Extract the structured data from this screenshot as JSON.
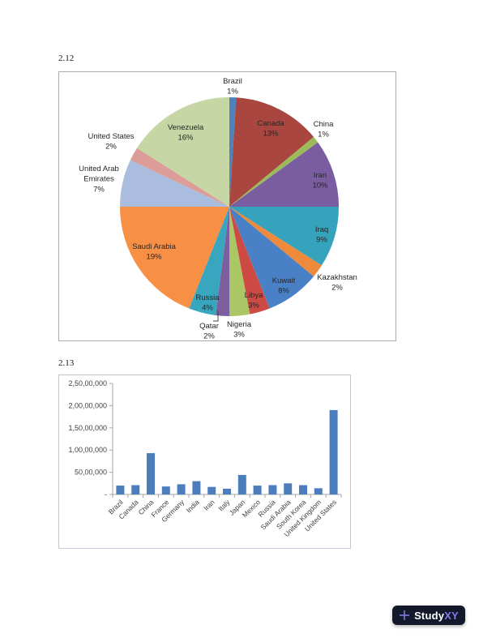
{
  "page": {
    "figure1_label": "2.12",
    "figure2_label": "2.13"
  },
  "logo": {
    "icon": "plus-icon",
    "text_primary": "Study",
    "text_secondary": "XY",
    "bg_color": "#14182b",
    "accent_color": "#8678f2"
  },
  "chart_data": [
    {
      "type": "pie",
      "title": "",
      "unit": "percent",
      "start_angle_deg": 0,
      "direction": "clockwise",
      "slices": [
        {
          "label": "Brazil",
          "value": 1,
          "color": "#4F81BD",
          "label_inside": false
        },
        {
          "label": "Canada",
          "value": 13,
          "color": "#A8463F",
          "label_inside": true
        },
        {
          "label": "China",
          "value": 1,
          "color": "#9BBB59",
          "label_inside": false
        },
        {
          "label": "Iran",
          "value": 10,
          "color": "#7A5CA0",
          "label_inside": true
        },
        {
          "label": "Iraq",
          "value": 9,
          "color": "#35A3BC",
          "label_inside": true
        },
        {
          "label": "Kazakhstan",
          "value": 2,
          "color": "#EE8A3C",
          "label_inside": false
        },
        {
          "label": "Kuwait",
          "value": 8,
          "color": "#4A80C6",
          "label_inside": true
        },
        {
          "label": "Libya",
          "value": 3,
          "color": "#CE4B45",
          "label_inside": true
        },
        {
          "label": "Nigeria",
          "value": 3,
          "color": "#ABC665",
          "label_inside": false
        },
        {
          "label": "Qatar",
          "value": 2,
          "color": "#7D5FA0",
          "label_inside": false,
          "leader": true
        },
        {
          "label": "Russia",
          "value": 4,
          "color": "#38A6BE",
          "label_inside": true
        },
        {
          "label": "Saudi Arabia",
          "value": 19,
          "color": "#F79044",
          "label_inside": true
        },
        {
          "label": "United Arab Emirates",
          "value": 7,
          "color": "#AABDDE",
          "label_inside": false
        },
        {
          "label": "United States",
          "value": 2,
          "color": "#DC9D98",
          "label_inside": false
        },
        {
          "label": "Venezuela",
          "value": 16,
          "color": "#C6D6A4",
          "label_inside": true
        }
      ]
    },
    {
      "type": "bar",
      "title": "",
      "grid": false,
      "legend": false,
      "bar_color": "#4C7EBE",
      "ylim": [
        0,
        25000000
      ],
      "ytick_interval": 5000000,
      "ytick_labels": [
        "-",
        "50,00,000",
        "1,00,00,000",
        "1,50,00,000",
        "2,00,00,000",
        "2,50,00,000"
      ],
      "categories": [
        "Brazil",
        "Canada",
        "China",
        "France",
        "Germany",
        "India",
        "Iran",
        "Italy",
        "Japan",
        "Mexico",
        "Russia",
        "Saudi Arabia",
        "South Korea",
        "United Kingdom",
        "United States"
      ],
      "values": [
        2000000,
        2100000,
        9300000,
        1800000,
        2300000,
        3000000,
        1700000,
        1300000,
        4400000,
        2000000,
        2100000,
        2500000,
        2100000,
        1400000,
        19000000
      ]
    }
  ]
}
